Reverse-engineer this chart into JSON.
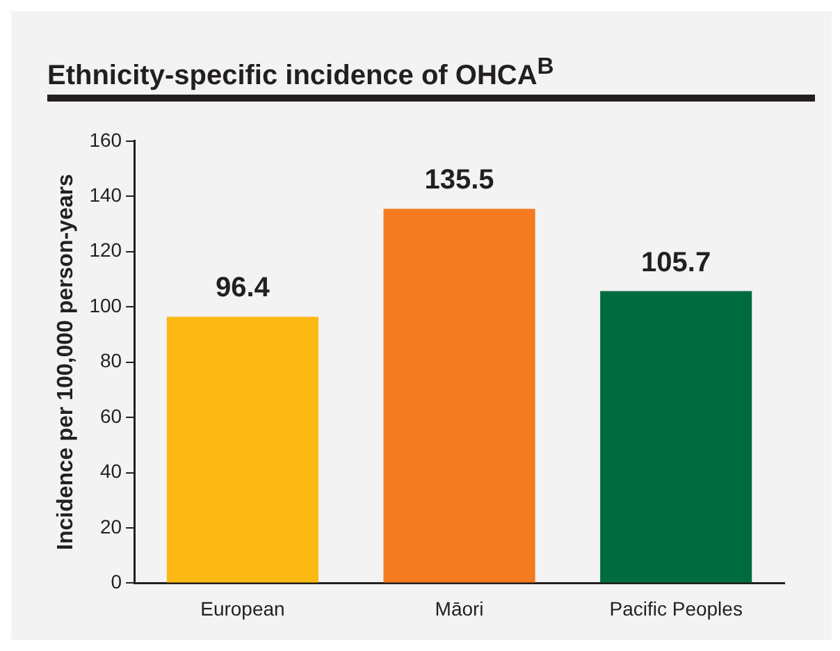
{
  "chart_data": {
    "type": "bar",
    "title": "Ethnicity-specific incidence of OHCA$^{B}$",
    "ylabel": "Incidence per 100,000 person-years",
    "categories": [
      "European",
      "Māori",
      "Pacific Peoples"
    ],
    "values": [
      96.4,
      135.5,
      105.7
    ],
    "colors": [
      "#fdb913",
      "#f47b20",
      "#006b3f"
    ],
    "ylim": [
      0,
      160
    ],
    "yticks": [
      0,
      20,
      40,
      60,
      80,
      100,
      120,
      140,
      160
    ],
    "grid": false,
    "legend": false,
    "data_labels": true
  }
}
